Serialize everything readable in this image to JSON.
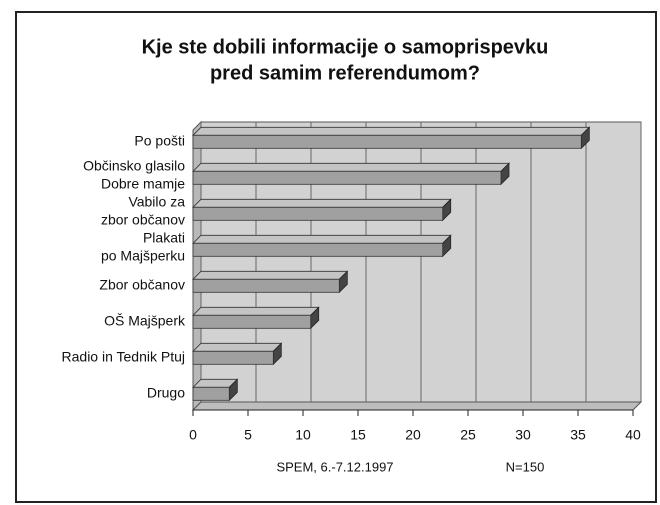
{
  "chart_data": {
    "type": "bar",
    "orientation": "horizontal",
    "title": [
      "Kje ste dobili informacije o samoprispevku",
      "pred samim referendumom?"
    ],
    "categories": [
      [
        "Po pošti"
      ],
      [
        "Občinsko glasilo",
        "Dobre mamje"
      ],
      [
        "Vabilo za",
        "zbor občanov"
      ],
      [
        "Plakati",
        "po Majšperku"
      ],
      [
        "Zbor občanov"
      ],
      [
        "OŠ Majšperk"
      ],
      [
        "Radio in Tednik Ptuj"
      ],
      [
        "Drugo"
      ]
    ],
    "values": [
      35.3,
      28,
      22.7,
      22.7,
      13.3,
      10.7,
      7.3,
      3.3
    ],
    "color": "#a0a0a0",
    "xlim": [
      0,
      40
    ],
    "xticks": [
      0,
      5,
      10,
      15,
      20,
      25,
      30,
      35,
      40
    ],
    "grid": true,
    "footnotes": [
      "SPEM, 6.-7.12.1997",
      "N=150"
    ]
  }
}
